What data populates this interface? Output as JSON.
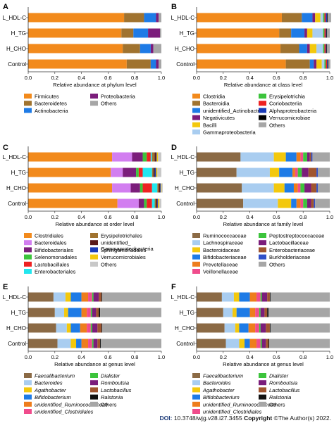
{
  "footer": {
    "doi_label": "DOI:",
    "doi": "10.3748/wjg.v28.i27.3455",
    "copyright_label": "Copyright",
    "copyright": "©The Author(s) 2022."
  },
  "chart_data": [
    {
      "panel": "A",
      "type": "bar",
      "orientation": "horizontal",
      "stacked": true,
      "categories": [
        "L_HDL-C",
        "H_TG",
        "H_CHO",
        "Control"
      ],
      "xlabel": "Relative abundance at phylum level",
      "xlim": [
        0,
        1
      ],
      "xticks": [
        "0.0",
        "0.2",
        "0.4",
        "0.6",
        "0.8",
        "1.0"
      ],
      "legend_columns": 2,
      "series": [
        {
          "name": "Firmicutes",
          "color": "#f28a1c",
          "values": [
            0.72,
            0.7,
            0.71,
            0.74
          ]
        },
        {
          "name": "Bacteroidetes",
          "color": "#a0732f",
          "values": [
            0.15,
            0.09,
            0.13,
            0.18
          ]
        },
        {
          "name": "Actinobacteria",
          "color": "#1e7be6",
          "values": [
            0.09,
            0.11,
            0.08,
            0.04
          ]
        },
        {
          "name": "Proteobacteria",
          "color": "#7b1d7b",
          "values": [
            0.02,
            0.09,
            0.02,
            0.02
          ]
        },
        {
          "name": "Others",
          "color": "#a6a6a6",
          "values": [
            0.02,
            0.01,
            0.06,
            0.02
          ]
        }
      ]
    },
    {
      "panel": "B",
      "type": "bar",
      "orientation": "horizontal",
      "stacked": true,
      "categories": [
        "L_HDL-C",
        "H_TG",
        "H_CHO",
        "Control"
      ],
      "xlabel": "Relative abundance at class level",
      "xlim": [
        0,
        1
      ],
      "xticks": [
        "0.0",
        "0.2",
        "0.4",
        "0.6",
        "0.8",
        "1.0"
      ],
      "legend_columns": 2,
      "series": [
        {
          "name": "Clostridia",
          "color": "#f28a1c",
          "values": [
            0.64,
            0.62,
            0.63,
            0.67
          ]
        },
        {
          "name": "Bacteroidia",
          "color": "#a0732f",
          "values": [
            0.15,
            0.09,
            0.14,
            0.18
          ]
        },
        {
          "name": "unidentified_Actinobacteria",
          "color": "#1e7be6",
          "values": [
            0.08,
            0.1,
            0.06,
            0.03
          ]
        },
        {
          "name": "Negativicutes",
          "color": "#7b1d7b",
          "values": [
            0.02,
            0.02,
            0.02,
            0.02
          ]
        },
        {
          "name": "Bacilli",
          "color": "#f3c80d",
          "values": [
            0.04,
            0.04,
            0.05,
            0.04
          ]
        },
        {
          "name": "Gammaproteobacteria",
          "color": "#a9cdf0",
          "values": [
            0.02,
            0.08,
            0.05,
            0.02
          ]
        },
        {
          "name": "Erysipelotrichia",
          "color": "#3cc43c",
          "values": [
            0.01,
            0.01,
            0.01,
            0.01
          ]
        },
        {
          "name": "Coriobacteriia",
          "color": "#ee2222",
          "values": [
            0.01,
            0.01,
            0.01,
            0.01
          ]
        },
        {
          "name": "Alphaproteobacteria",
          "color": "#1a3bb8",
          "values": [
            0.01,
            0.005,
            0.005,
            0.005
          ]
        },
        {
          "name": "Verrucomicrobiae",
          "color": "#000000",
          "values": [
            0.005,
            0.005,
            0.005,
            0.005
          ]
        },
        {
          "name": "Others",
          "color": "#a6a6a6",
          "values": [
            0.025,
            0.02,
            0.02,
            0.015
          ]
        }
      ]
    },
    {
      "panel": "C",
      "type": "bar",
      "orientation": "horizontal",
      "stacked": true,
      "categories": [
        "L_HDL-C",
        "H_TG",
        "H_CHO",
        "Control"
      ],
      "xlabel": "Relative abundance at order level",
      "xlim": [
        0,
        1
      ],
      "xticks": [
        "0.0",
        "0.2",
        "0.4",
        "0.6",
        "0.8",
        "1.0"
      ],
      "legend_columns": 2,
      "series": [
        {
          "name": "Clostridiales",
          "color": "#f28a1c",
          "values": [
            0.63,
            0.62,
            0.63,
            0.67
          ]
        },
        {
          "name": "Bacteroidales",
          "color": "#d27ef0",
          "values": [
            0.15,
            0.09,
            0.14,
            0.16
          ]
        },
        {
          "name": "Bifidobacteriales",
          "color": "#7b1d7b",
          "values": [
            0.08,
            0.1,
            0.07,
            0.04
          ]
        },
        {
          "name": "Selenomonadales",
          "color": "#3cc43c",
          "values": [
            0.03,
            0.02,
            0.02,
            0.02
          ]
        },
        {
          "name": "Lactobacillales",
          "color": "#ee2222",
          "values": [
            0.03,
            0.03,
            0.07,
            0.04
          ]
        },
        {
          "name": "Enterobacteriales",
          "color": "#22e6ee",
          "values": [
            0.01,
            0.07,
            0.04,
            0.02
          ]
        },
        {
          "name": "Erysipelotrichales",
          "color": "#a0732f",
          "values": [
            0.02,
            0.01,
            0.01,
            0.01
          ]
        },
        {
          "name": "unidentified_ Gammaproteobacteria",
          "color": "#5a1a1a",
          "values": [
            0.01,
            0.01,
            0.01,
            0.01
          ]
        },
        {
          "name": "Sphingomonadales",
          "color": "#1a3bb8",
          "values": [
            0.005,
            0.01,
            0.005,
            0.005
          ]
        },
        {
          "name": "Verrucomicrobiales",
          "color": "#f3c80d",
          "values": [
            0.01,
            0.01,
            0.005,
            0.01
          ]
        },
        {
          "name": "Others",
          "color": "#c8c8c8",
          "values": [
            0.025,
            0.03,
            0.01,
            0.015
          ]
        }
      ]
    },
    {
      "panel": "D",
      "type": "bar",
      "orientation": "horizontal",
      "stacked": true,
      "categories": [
        "L_HDL-C",
        "H_TG",
        "H_CHO",
        "Control"
      ],
      "xlabel": "Relative abundance at family level",
      "xlim": [
        0,
        1
      ],
      "xticks": [
        "0.0",
        "0.2",
        "0.4",
        "0.6",
        "0.8",
        "1.0"
      ],
      "legend_columns": 2,
      "series": [
        {
          "name": "Ruminococcaceae",
          "color": "#8b6a45",
          "values": [
            0.33,
            0.3,
            0.34,
            0.35
          ]
        },
        {
          "name": "Lachnospiraceae",
          "color": "#a9cdf0",
          "values": [
            0.25,
            0.25,
            0.24,
            0.26
          ]
        },
        {
          "name": "Bacteroidaceae",
          "color": "#f3c80d",
          "values": [
            0.09,
            0.07,
            0.08,
            0.1
          ]
        },
        {
          "name": "Bifidobacteriaceae",
          "color": "#1e7be6",
          "values": [
            0.08,
            0.1,
            0.07,
            0.04
          ]
        },
        {
          "name": "Prevotellaceae",
          "color": "#ee7d1c",
          "values": [
            0.03,
            0.02,
            0.03,
            0.03
          ]
        },
        {
          "name": "Veillonellaceae",
          "color": "#f04c8c",
          "values": [
            0.02,
            0.02,
            0.02,
            0.02
          ]
        },
        {
          "name": "Peptostreptococcaceae",
          "color": "#3cc43c",
          "values": [
            0.03,
            0.03,
            0.03,
            0.03
          ]
        },
        {
          "name": "Lactobacillaceae",
          "color": "#7b1d7b",
          "values": [
            0.02,
            0.05,
            0.05,
            0.03
          ]
        },
        {
          "name": "Enterobacteriaceae",
          "color": "#a0552f",
          "values": [
            0.01,
            0.06,
            0.04,
            0.02
          ]
        },
        {
          "name": "Burkholderiaceae",
          "color": "#3050c8",
          "values": [
            0.01,
            0.01,
            0.01,
            0.01
          ]
        },
        {
          "name": "Others",
          "color": "#a6a6a6",
          "values": [
            0.13,
            0.09,
            0.09,
            0.11
          ]
        }
      ]
    },
    {
      "panel": "E",
      "type": "bar",
      "orientation": "horizontal",
      "stacked": true,
      "categories": [
        "L_HDL-C",
        "H_TG",
        "H_CHO",
        "Control"
      ],
      "xlabel": "Relative abundance at genus level",
      "xlim": [
        0,
        1
      ],
      "xticks": [
        "0.0",
        "0.2",
        "0.4",
        "0.6",
        "0.8",
        "1.0"
      ],
      "legend_columns": 2,
      "legend_italic": true,
      "series": [
        {
          "name": "Faecalibacterium",
          "color": "#8b6a45",
          "values": [
            0.19,
            0.2,
            0.21,
            0.22
          ]
        },
        {
          "name": "Bacteroides",
          "color": "#a9cdf0",
          "values": [
            0.09,
            0.07,
            0.08,
            0.1
          ]
        },
        {
          "name": "Agathobacter",
          "color": "#f3c80d",
          "values": [
            0.04,
            0.03,
            0.03,
            0.04
          ]
        },
        {
          "name": "Bifidobacterium",
          "color": "#1e7be6",
          "values": [
            0.08,
            0.1,
            0.07,
            0.04
          ]
        },
        {
          "name": "unidentified_Ruminococcaceae",
          "color": "#ee7d1c",
          "values": [
            0.05,
            0.04,
            0.05,
            0.05
          ]
        },
        {
          "name": "unidentified_Clostridiales",
          "color": "#f04c8c",
          "values": [
            0.03,
            0.03,
            0.03,
            0.03
          ]
        },
        {
          "name": "Dialister",
          "color": "#3cc43c",
          "values": [
            0.01,
            0.01,
            0.01,
            0.01
          ]
        },
        {
          "name": "Romboutsia",
          "color": "#7b1d7b",
          "values": [
            0.04,
            0.03,
            0.04,
            0.03
          ]
        },
        {
          "name": "Lactobacillus",
          "color": "#a0552f",
          "values": [
            0.02,
            0.02,
            0.03,
            0.02
          ]
        },
        {
          "name": "Ralstonia",
          "color": "#111111",
          "values": [
            0.005,
            0.01,
            0.005,
            0.005
          ]
        },
        {
          "name": "Others",
          "color": "#a6a6a6",
          "values": [
            0.445,
            0.46,
            0.445,
            0.455
          ]
        }
      ]
    },
    {
      "panel": "F",
      "type": "bar",
      "orientation": "horizontal",
      "stacked": true,
      "categories": [
        "L_HDL-C",
        "H_TG",
        "H_CHO",
        "Control"
      ],
      "xlabel": "Relative abundance at genus level",
      "xlim": [
        0,
        1
      ],
      "xticks": [
        "0.0",
        "0.2",
        "0.4",
        "0.6",
        "0.8",
        "1.0"
      ],
      "legend_columns": 2,
      "legend_italic": true,
      "series": [
        {
          "name": "Faecalibacterium",
          "color": "#8b6a45",
          "values": [
            0.19,
            0.2,
            0.21,
            0.22
          ]
        },
        {
          "name": "Bacteroides",
          "color": "#a9cdf0",
          "values": [
            0.09,
            0.07,
            0.08,
            0.1
          ]
        },
        {
          "name": "Agathobacter",
          "color": "#f3c80d",
          "values": [
            0.04,
            0.03,
            0.03,
            0.04
          ]
        },
        {
          "name": "Bifidobacterium",
          "color": "#1e7be6",
          "values": [
            0.08,
            0.1,
            0.07,
            0.04
          ]
        },
        {
          "name": "unidentified_Ruminococcaceae",
          "color": "#ee7d1c",
          "values": [
            0.05,
            0.04,
            0.05,
            0.05
          ]
        },
        {
          "name": "unidentified_Clostridiales",
          "color": "#f04c8c",
          "values": [
            0.03,
            0.03,
            0.03,
            0.03
          ]
        },
        {
          "name": "Dialister",
          "color": "#3cc43c",
          "values": [
            0.01,
            0.01,
            0.01,
            0.01
          ]
        },
        {
          "name": "Romboutsia",
          "color": "#7b1d7b",
          "values": [
            0.04,
            0.03,
            0.04,
            0.03
          ]
        },
        {
          "name": "Lactobacillus",
          "color": "#a0552f",
          "values": [
            0.02,
            0.02,
            0.03,
            0.02
          ]
        },
        {
          "name": "Ralstonia",
          "color": "#111111",
          "values": [
            0.005,
            0.01,
            0.005,
            0.005
          ]
        },
        {
          "name": "Others",
          "color": "#a6a6a6",
          "values": [
            0.445,
            0.46,
            0.445,
            0.455
          ]
        }
      ]
    }
  ]
}
